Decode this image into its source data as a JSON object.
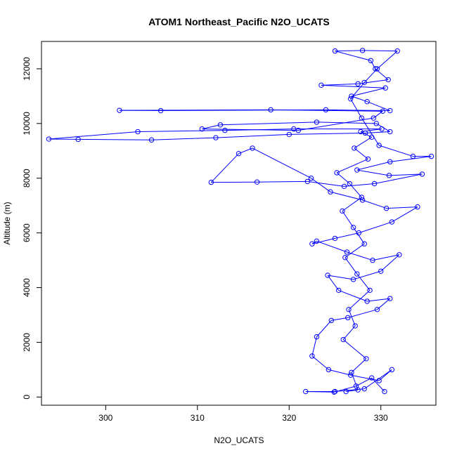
{
  "chart_data": {
    "type": "line",
    "title": "ATOM1 Northeast_Pacific N2O_UCATS",
    "xlabel": "N2O_UCATS",
    "ylabel": "Altitude (m)",
    "xlim": [
      293,
      336
    ],
    "ylim": [
      -300,
      13000
    ],
    "xticks": [
      300,
      310,
      320,
      330
    ],
    "yticks": [
      0,
      2000,
      4000,
      6000,
      8000,
      10000,
      12000
    ],
    "grid": false,
    "colors": {
      "series": "#0000ff",
      "axis": "#000000",
      "background": "#ffffff"
    },
    "series": [
      {
        "marker": "open-circle",
        "points": [
          [
            326.2,
            200
          ],
          [
            327.5,
            260
          ],
          [
            326.8,
            900
          ],
          [
            328.4,
            1400
          ],
          [
            325.9,
            2100
          ],
          [
            327.2,
            2600
          ],
          [
            326.5,
            3200
          ],
          [
            328.8,
            3900
          ],
          [
            327.4,
            4500
          ],
          [
            326.1,
            5100
          ],
          [
            328.2,
            5600
          ],
          [
            327.0,
            6200
          ],
          [
            325.8,
            6800
          ],
          [
            327.9,
            7300
          ],
          [
            326.6,
            7800
          ],
          [
            325.2,
            8200
          ],
          [
            328.6,
            8700
          ],
          [
            327.1,
            9100
          ],
          [
            329.0,
            9500
          ],
          [
            327.8,
            9700
          ],
          [
            330.1,
            9800
          ],
          [
            320.5,
            9800
          ],
          [
            313.0,
            9750
          ],
          [
            303.5,
            9700
          ],
          [
            293.8,
            9430
          ],
          [
            297.0,
            9420
          ],
          [
            305.0,
            9400
          ],
          [
            312.0,
            9480
          ],
          [
            320.0,
            9600
          ],
          [
            328.3,
            9650
          ],
          [
            331.0,
            9700
          ],
          [
            329.5,
            10000
          ],
          [
            323.0,
            10050
          ],
          [
            312.5,
            9950
          ],
          [
            310.5,
            9800
          ],
          [
            321.0,
            9750
          ],
          [
            329.2,
            10200
          ],
          [
            330.2,
            10450
          ],
          [
            318.0,
            10500
          ],
          [
            301.5,
            10480
          ],
          [
            306.0,
            10470
          ],
          [
            324.0,
            10500
          ],
          [
            331.0,
            10470
          ],
          [
            328.5,
            10800
          ],
          [
            326.8,
            11000
          ],
          [
            330.5,
            11300
          ],
          [
            323.5,
            11400
          ],
          [
            327.5,
            11450
          ],
          [
            330.8,
            11600
          ],
          [
            329.4,
            12000
          ],
          [
            328.9,
            12300
          ],
          [
            325.0,
            12650
          ],
          [
            328.0,
            12670
          ],
          [
            331.8,
            12650
          ],
          [
            329.6,
            12000
          ],
          [
            328.2,
            11500
          ],
          [
            326.7,
            10900
          ],
          [
            327.9,
            10200
          ],
          [
            329.8,
            9200
          ],
          [
            333.5,
            8800
          ],
          [
            335.5,
            8800
          ],
          [
            331.0,
            8600
          ],
          [
            327.4,
            8300
          ],
          [
            330.9,
            8100
          ],
          [
            334.5,
            8150
          ],
          [
            329.3,
            7800
          ],
          [
            326.0,
            7700
          ],
          [
            322.0,
            7880
          ],
          [
            316.5,
            7860
          ],
          [
            311.5,
            7850
          ],
          [
            314.5,
            8900
          ],
          [
            316.0,
            9100
          ],
          [
            322.4,
            8000
          ],
          [
            324.5,
            7500
          ],
          [
            328.0,
            7200
          ],
          [
            330.6,
            6900
          ],
          [
            334.0,
            6950
          ],
          [
            331.2,
            6400
          ],
          [
            327.6,
            6000
          ],
          [
            325.0,
            5800
          ],
          [
            322.5,
            5600
          ],
          [
            323.0,
            5700
          ],
          [
            326.3,
            5300
          ],
          [
            329.1,
            5000
          ],
          [
            332.0,
            5200
          ],
          [
            330.0,
            4600
          ],
          [
            327.0,
            4300
          ],
          [
            324.2,
            4450
          ],
          [
            325.4,
            3900
          ],
          [
            328.5,
            3500
          ],
          [
            331.0,
            3600
          ],
          [
            329.6,
            3200
          ],
          [
            326.4,
            2900
          ],
          [
            324.6,
            2800
          ],
          [
            323.0,
            2200
          ],
          [
            322.5,
            1500
          ],
          [
            324.3,
            1000
          ],
          [
            326.7,
            800
          ],
          [
            329.8,
            600
          ],
          [
            331.2,
            1000
          ],
          [
            328.2,
            300
          ],
          [
            325.0,
            200
          ],
          [
            321.8,
            200
          ],
          [
            324.9,
            180
          ],
          [
            327.3,
            400
          ],
          [
            329.0,
            700
          ],
          [
            330.4,
            200
          ]
        ]
      }
    ]
  }
}
